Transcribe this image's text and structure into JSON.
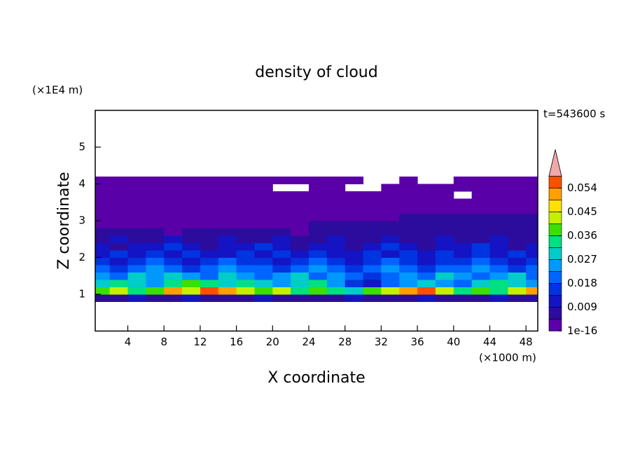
{
  "chart_data": {
    "type": "contour",
    "title": "density of cloud",
    "x_label": "X coordinate",
    "y_label": "Z coordinate",
    "x_unit": "(×1000 m)",
    "y_unit": "(×1E4 m)",
    "time_label": "t=543600 s",
    "xlim": [
      0.4,
      49.3
    ],
    "ylim": [
      0,
      6
    ],
    "xticks": [
      4,
      8,
      12,
      16,
      20,
      24,
      28,
      32,
      36,
      40,
      44,
      48
    ],
    "yticks": [
      1,
      2,
      3,
      4,
      5
    ],
    "x": [
      1,
      3,
      5,
      7,
      9,
      11,
      13,
      15,
      17,
      19,
      21,
      23,
      25,
      27,
      29,
      31,
      33,
      35,
      37,
      39,
      41,
      43,
      45,
      47,
      49
    ],
    "z": [
      0.9,
      1.1,
      1.3,
      1.5,
      1.7,
      1.9,
      2.1,
      2.3,
      2.5,
      2.7,
      2.9,
      3.1,
      3.3,
      3.5,
      3.7,
      3.9,
      4.1
    ],
    "values": [
      [
        0.006,
        0.006,
        0.011,
        0.006,
        0.006,
        0.011,
        0.006,
        0.006,
        0.006,
        0.011,
        0.006,
        0.006,
        0.006,
        0.006,
        0.011,
        0.006,
        0.006,
        0.006,
        0.011,
        0.006,
        0.006,
        0.006,
        0.011,
        0.006,
        0.006
      ],
      [
        0.04,
        0.044,
        0.035,
        0.04,
        0.05,
        0.044,
        0.055,
        0.05,
        0.044,
        0.04,
        0.044,
        0.035,
        0.04,
        0.035,
        0.03,
        0.04,
        0.044,
        0.05,
        0.055,
        0.044,
        0.035,
        0.04,
        0.035,
        0.044,
        0.05
      ],
      [
        0.03,
        0.035,
        0.03,
        0.024,
        0.035,
        0.04,
        0.035,
        0.03,
        0.035,
        0.03,
        0.024,
        0.03,
        0.035,
        0.024,
        0.015,
        0.011,
        0.02,
        0.024,
        0.03,
        0.024,
        0.02,
        0.03,
        0.035,
        0.03,
        0.024
      ],
      [
        0.024,
        0.02,
        0.028,
        0.024,
        0.03,
        0.024,
        0.02,
        0.028,
        0.024,
        0.02,
        0.024,
        0.028,
        0.02,
        0.024,
        0.02,
        0.015,
        0.02,
        0.024,
        0.02,
        0.028,
        0.024,
        0.02,
        0.024,
        0.028,
        0.02
      ],
      [
        0.02,
        0.015,
        0.02,
        0.024,
        0.02,
        0.015,
        0.02,
        0.024,
        0.02,
        0.02,
        0.015,
        0.02,
        0.024,
        0.02,
        0.015,
        0.02,
        0.024,
        0.02,
        0.015,
        0.02,
        0.02,
        0.024,
        0.02,
        0.015,
        0.02
      ],
      [
        0.015,
        0.011,
        0.015,
        0.02,
        0.015,
        0.011,
        0.015,
        0.02,
        0.015,
        0.015,
        0.011,
        0.015,
        0.02,
        0.015,
        0.011,
        0.015,
        0.02,
        0.015,
        0.011,
        0.015,
        0.015,
        0.02,
        0.015,
        0.011,
        0.015
      ],
      [
        0.011,
        0.015,
        0.011,
        0.015,
        0.011,
        0.015,
        0.011,
        0.011,
        0.015,
        0.011,
        0.015,
        0.011,
        0.015,
        0.011,
        0.011,
        0.015,
        0.011,
        0.015,
        0.011,
        0.015,
        0.011,
        0.015,
        0.011,
        0.015,
        0.011
      ],
      [
        0.011,
        0.006,
        0.011,
        0.011,
        0.015,
        0.011,
        0.006,
        0.011,
        0.011,
        0.015,
        0.011,
        0.006,
        0.011,
        0.011,
        0.006,
        0.011,
        0.015,
        0.011,
        0.006,
        0.011,
        0.011,
        0.015,
        0.011,
        0.006,
        0.011
      ],
      [
        0.006,
        0.011,
        0.006,
        0.006,
        0.011,
        0.006,
        0.006,
        0.011,
        0.006,
        0.006,
        0.011,
        0.006,
        0.006,
        0.011,
        0.006,
        0.006,
        0.011,
        0.006,
        0.006,
        0.011,
        0.006,
        0.006,
        0.011,
        0.006,
        0.006
      ],
      [
        0.006,
        0.006,
        0.006,
        0.006,
        0.002,
        0.006,
        0.006,
        0.006,
        0.006,
        0.006,
        0.006,
        0.002,
        0.006,
        0.006,
        0.006,
        0.006,
        0.006,
        0.006,
        0.006,
        0.006,
        0.006,
        0.006,
        0.006,
        0.006,
        0.006
      ],
      [
        0.002,
        0.002,
        0.002,
        0.002,
        0.002,
        0.002,
        0.002,
        0.002,
        0.002,
        0.002,
        0.002,
        0.002,
        0.006,
        0.006,
        0.006,
        0.006,
        0.006,
        0.006,
        0.006,
        0.006,
        0.006,
        0.006,
        0.006,
        0.006,
        0.006
      ],
      [
        0.002,
        0.002,
        0.002,
        0.002,
        0.002,
        0.002,
        0.002,
        0.002,
        0.002,
        0.002,
        0.002,
        0.002,
        0.002,
        0.002,
        0.002,
        0.002,
        0.002,
        0.006,
        0.006,
        0.006,
        0.006,
        0.006,
        0.006,
        0.006,
        0.006
      ],
      [
        0.002,
        0.002,
        0.002,
        0.002,
        0.002,
        0.002,
        0.002,
        0.002,
        0.002,
        0.002,
        0.002,
        0.002,
        0.002,
        0.002,
        0.002,
        0.002,
        0.002,
        0.002,
        0.002,
        0.002,
        0.002,
        0.002,
        0.002,
        0.002,
        0.002
      ],
      [
        0.002,
        0.002,
        0.002,
        0.002,
        0.002,
        0.002,
        0.002,
        0.002,
        0.002,
        0.002,
        0.002,
        0.002,
        0.002,
        0.002,
        0.002,
        0.002,
        0.002,
        0.002,
        0.002,
        0.002,
        0.002,
        0.002,
        0.002,
        0.002,
        0.002
      ],
      [
        0.002,
        0.002,
        0.002,
        0.002,
        0.002,
        0.002,
        0.002,
        0.002,
        0.002,
        0.002,
        0.002,
        0.002,
        0.002,
        0.002,
        0.002,
        0.002,
        0.002,
        0.002,
        0.002,
        0.002,
        null,
        0.002,
        0.002,
        0.002,
        0.002
      ],
      [
        0.002,
        0.002,
        0.002,
        0.002,
        0.002,
        0.002,
        0.002,
        0.002,
        0.002,
        0.002,
        null,
        null,
        0.002,
        0.002,
        null,
        null,
        0.002,
        0.002,
        0.002,
        0.002,
        0.002,
        0.002,
        0.002,
        0.002,
        0.002
      ],
      [
        0.002,
        0.002,
        0.002,
        0.002,
        0.002,
        0.002,
        0.002,
        0.002,
        0.002,
        0.002,
        0.002,
        0.002,
        0.002,
        0.002,
        0.002,
        null,
        null,
        0.002,
        null,
        null,
        0.002,
        0.002,
        0.002,
        0.002,
        0.002
      ]
    ],
    "levels": [
      1e-16,
      0.0045,
      0.009,
      0.0135,
      0.018,
      0.0225,
      0.027,
      0.0315,
      0.036,
      0.0405,
      0.045,
      0.0495,
      0.054
    ],
    "colors": [
      "#5a00a8",
      "#2c0c9c",
      "#1414c4",
      "#0034e0",
      "#0064ff",
      "#0098ff",
      "#00ccc8",
      "#00e080",
      "#3ce000",
      "#c4f000",
      "#ffe000",
      "#ffa000",
      "#ff5000"
    ],
    "extend_color": "#f2a8a8",
    "colorbar_ticks": [
      1e-16,
      0.009,
      0.018,
      0.027,
      0.036,
      0.045,
      0.054
    ]
  }
}
